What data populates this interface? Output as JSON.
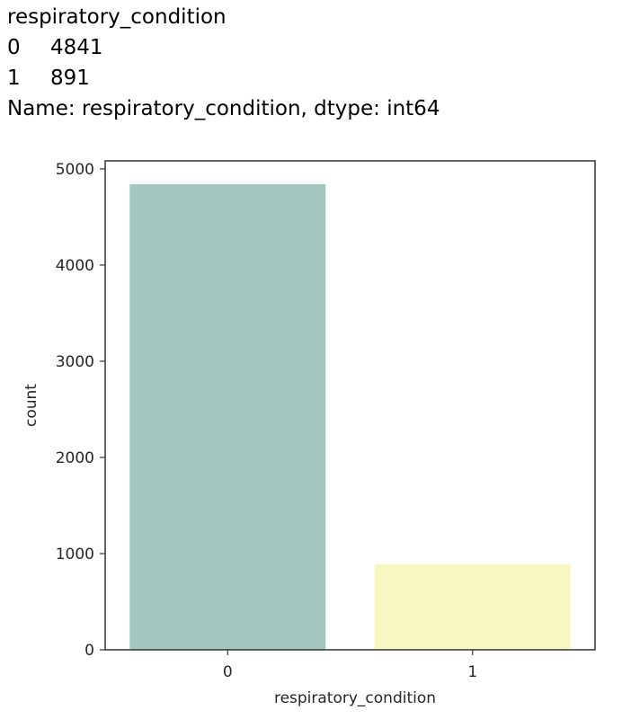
{
  "output": {
    "header": "respiratory_condition",
    "rows": [
      {
        "index": "0",
        "value": "4841"
      },
      {
        "index": "1",
        "value": "891"
      }
    ],
    "footer": "Name: respiratory_condition, dtype: int64"
  },
  "chart_data": {
    "type": "bar",
    "categories": [
      "0",
      "1"
    ],
    "values": [
      4841,
      891
    ],
    "colors": [
      "#a2c8c0",
      "#f7f7c2"
    ],
    "xlabel": "respiratory_condition",
    "ylabel": "count",
    "ylim": [
      0,
      5083
    ],
    "yticks": [
      0,
      1000,
      2000,
      3000,
      4000,
      5000
    ],
    "grid": false
  }
}
